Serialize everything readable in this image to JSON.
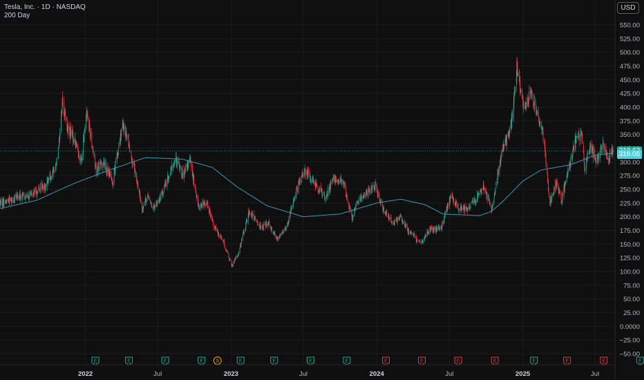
{
  "legend": {
    "line1": "Tesla, Inc. · 1D · NASDAQ",
    "line2": "200 Day"
  },
  "currency_button": "USD",
  "price_tags": [
    {
      "value": "319.62",
      "color": "#22ab94",
      "price": 319.62
    },
    {
      "value": "316.06",
      "color": "#4dd0e1",
      "price": 316.06
    }
  ],
  "chart_data": {
    "type": "candlestick",
    "ylim": [
      -62,
      585
    ],
    "xlim": [
      "2021-06-01",
      "2025-08-20"
    ],
    "y_ticks": [
      "550.00",
      "525.00",
      "500.00",
      "475.00",
      "450.00",
      "425.00",
      "400.00",
      "375.00",
      "350.00",
      "325.00",
      "300.00",
      "275.00",
      "250.00",
      "225.00",
      "200.00",
      "175.00",
      "150.00",
      "125.00",
      "100.00",
      "75.00",
      "50.00",
      "25.00",
      "0.0000",
      "−25.00",
      "−50.00"
    ],
    "x_ticks": [
      {
        "label": "2022",
        "date": "2022-01-01",
        "year": true
      },
      {
        "label": "Jul",
        "date": "2022-07-01",
        "year": false
      },
      {
        "label": "2023",
        "date": "2023-01-01",
        "year": true
      },
      {
        "label": "Jul",
        "date": "2023-07-01",
        "year": false
      },
      {
        "label": "2024",
        "date": "2024-01-01",
        "year": true
      },
      {
        "label": "Jul",
        "date": "2024-07-01",
        "year": false
      },
      {
        "label": "2025",
        "date": "2025-01-01",
        "year": true
      },
      {
        "label": "Jul",
        "date": "2025-07-01",
        "year": false
      }
    ],
    "price_anchors": [
      [
        "2021-06-01",
        225
      ],
      [
        "2021-07-10",
        235
      ],
      [
        "2021-08-20",
        240
      ],
      [
        "2021-09-25",
        260
      ],
      [
        "2021-10-18",
        290
      ],
      [
        "2021-10-28",
        345
      ],
      [
        "2021-11-04",
        410
      ],
      [
        "2021-11-18",
        360
      ],
      [
        "2021-12-05",
        340
      ],
      [
        "2021-12-22",
        300
      ],
      [
        "2022-01-04",
        395
      ],
      [
        "2022-01-28",
        285
      ],
      [
        "2022-02-15",
        300
      ],
      [
        "2022-03-10",
        265
      ],
      [
        "2022-04-04",
        365
      ],
      [
        "2022-04-18",
        340
      ],
      [
        "2022-05-02",
        290
      ],
      [
        "2022-05-24",
        215
      ],
      [
        "2022-06-08",
        240
      ],
      [
        "2022-06-16",
        215
      ],
      [
        "2022-07-05",
        230
      ],
      [
        "2022-08-15",
        305
      ],
      [
        "2022-09-05",
        275
      ],
      [
        "2022-09-20",
        305
      ],
      [
        "2022-10-10",
        220
      ],
      [
        "2022-11-01",
        225
      ],
      [
        "2022-11-20",
        180
      ],
      [
        "2022-12-10",
        160
      ],
      [
        "2023-01-03",
        110
      ],
      [
        "2023-01-20",
        135
      ],
      [
        "2023-02-15",
        210
      ],
      [
        "2023-03-01",
        195
      ],
      [
        "2023-03-20",
        180
      ],
      [
        "2023-04-05",
        190
      ],
      [
        "2023-04-25",
        160
      ],
      [
        "2023-05-20",
        180
      ],
      [
        "2023-06-10",
        240
      ],
      [
        "2023-07-05",
        285
      ],
      [
        "2023-07-25",
        265
      ],
      [
        "2023-08-25",
        235
      ],
      [
        "2023-09-15",
        270
      ],
      [
        "2023-10-10",
        260
      ],
      [
        "2023-10-31",
        200
      ],
      [
        "2023-11-20",
        235
      ],
      [
        "2023-12-28",
        255
      ],
      [
        "2024-01-15",
        215
      ],
      [
        "2024-02-10",
        190
      ],
      [
        "2024-03-01",
        200
      ],
      [
        "2024-03-20",
        175
      ],
      [
        "2024-04-20",
        150
      ],
      [
        "2024-05-10",
        175
      ],
      [
        "2024-06-10",
        180
      ],
      [
        "2024-07-05",
        240
      ],
      [
        "2024-07-25",
        215
      ],
      [
        "2024-08-20",
        215
      ],
      [
        "2024-09-25",
        255
      ],
      [
        "2024-10-15",
        215
      ],
      [
        "2024-10-25",
        255
      ],
      [
        "2024-11-08",
        320
      ],
      [
        "2024-11-25",
        345
      ],
      [
        "2024-12-05",
        380
      ],
      [
        "2024-12-17",
        475
      ],
      [
        "2025-01-02",
        400
      ],
      [
        "2025-01-20",
        425
      ],
      [
        "2025-02-20",
        355
      ],
      [
        "2025-03-10",
        225
      ],
      [
        "2025-03-25",
        265
      ],
      [
        "2025-04-08",
        230
      ],
      [
        "2025-04-25",
        285
      ],
      [
        "2025-05-15",
        345
      ],
      [
        "2025-05-28",
        345
      ],
      [
        "2025-06-05",
        290
      ],
      [
        "2025-06-20",
        330
      ],
      [
        "2025-07-05",
        300
      ],
      [
        "2025-07-20",
        330
      ],
      [
        "2025-08-05",
        305
      ],
      [
        "2025-08-15",
        320
      ]
    ],
    "ma200_anchors": [
      [
        "2021-06-01",
        215
      ],
      [
        "2021-09-01",
        230
      ],
      [
        "2021-12-01",
        260
      ],
      [
        "2022-03-01",
        285
      ],
      [
        "2022-06-01",
        308
      ],
      [
        "2022-09-01",
        305
      ],
      [
        "2022-11-15",
        290
      ],
      [
        "2023-01-15",
        255
      ],
      [
        "2023-04-01",
        220
      ],
      [
        "2023-07-01",
        200
      ],
      [
        "2023-10-01",
        205
      ],
      [
        "2024-01-01",
        225
      ],
      [
        "2024-03-01",
        232
      ],
      [
        "2024-05-01",
        222
      ],
      [
        "2024-06-15",
        205
      ],
      [
        "2024-09-15",
        202
      ],
      [
        "2024-10-15",
        210
      ],
      [
        "2024-11-15",
        230
      ],
      [
        "2025-01-01",
        265
      ],
      [
        "2025-02-15",
        285
      ],
      [
        "2025-05-01",
        295
      ],
      [
        "2025-07-01",
        312
      ],
      [
        "2025-08-15",
        316
      ]
    ]
  },
  "events": [
    {
      "type": "E",
      "date": "2022-01-26",
      "color": "#22ab94"
    },
    {
      "type": "E",
      "date": "2022-04-20",
      "color": "#22ab94"
    },
    {
      "type": "E",
      "date": "2022-07-20",
      "color": "#22ab94"
    },
    {
      "type": "E",
      "date": "2022-10-19",
      "color": "#22ab94"
    },
    {
      "type": "S",
      "date": "2022-11-28",
      "color": "#f7a600"
    },
    {
      "type": "E",
      "date": "2023-01-25",
      "color": "#22ab94"
    },
    {
      "type": "E",
      "date": "2023-04-19",
      "color": "#22ab94"
    },
    {
      "type": "E",
      "date": "2023-07-19",
      "color": "#22ab94"
    },
    {
      "type": "E",
      "date": "2023-10-18",
      "color": "#22ab94"
    },
    {
      "type": "E",
      "date": "2024-01-24",
      "color": "#f23645"
    },
    {
      "type": "E",
      "date": "2024-04-23",
      "color": "#f23645"
    },
    {
      "type": "E",
      "date": "2024-07-23",
      "color": "#f23645"
    },
    {
      "type": "E",
      "date": "2024-10-23",
      "color": "#f23645"
    },
    {
      "type": "E",
      "date": "2025-01-29",
      "color": "#22ab94"
    },
    {
      "type": "E",
      "date": "2025-04-22",
      "color": "#f23645"
    },
    {
      "type": "E",
      "date": "2025-07-23",
      "color": "#f23645"
    },
    {
      "type": "E",
      "date": "2025-10-22",
      "color": "#22ab94"
    }
  ]
}
